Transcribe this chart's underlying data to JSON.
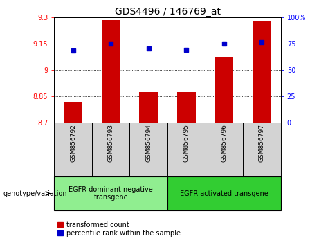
{
  "title": "GDS4496 / 146769_at",
  "samples": [
    "GSM856792",
    "GSM856793",
    "GSM856794",
    "GSM856795",
    "GSM856796",
    "GSM856797"
  ],
  "red_values": [
    8.82,
    9.285,
    8.875,
    8.875,
    9.07,
    9.275
  ],
  "blue_values": [
    68,
    75,
    70,
    69,
    75,
    76
  ],
  "ylim_left": [
    8.7,
    9.3
  ],
  "ylim_right": [
    0,
    100
  ],
  "yticks_left": [
    8.7,
    8.85,
    9.0,
    9.15,
    9.3
  ],
  "yticks_right": [
    0,
    25,
    50,
    75,
    100
  ],
  "ytick_labels_left": [
    "8.7",
    "8.85",
    "9",
    "9.15",
    "9.3"
  ],
  "ytick_labels_right": [
    "0",
    "25",
    "50",
    "75",
    "100%"
  ],
  "grid_values": [
    8.85,
    9.0,
    9.15
  ],
  "group1_label": "EGFR dominant negative\ntransgene",
  "group2_label": "EGFR activated transgene",
  "genotype_label": "genotype/variation",
  "legend_red": "transformed count",
  "legend_blue": "percentile rank within the sample",
  "bar_color": "#cc0000",
  "dot_color": "#0000cc",
  "group1_bg": "#90ee90",
  "group2_bg": "#32cd32",
  "tick_bg": "#d3d3d3",
  "bar_bottom": 8.7,
  "title_fontsize": 10,
  "tick_fontsize": 7,
  "label_fontsize": 7
}
